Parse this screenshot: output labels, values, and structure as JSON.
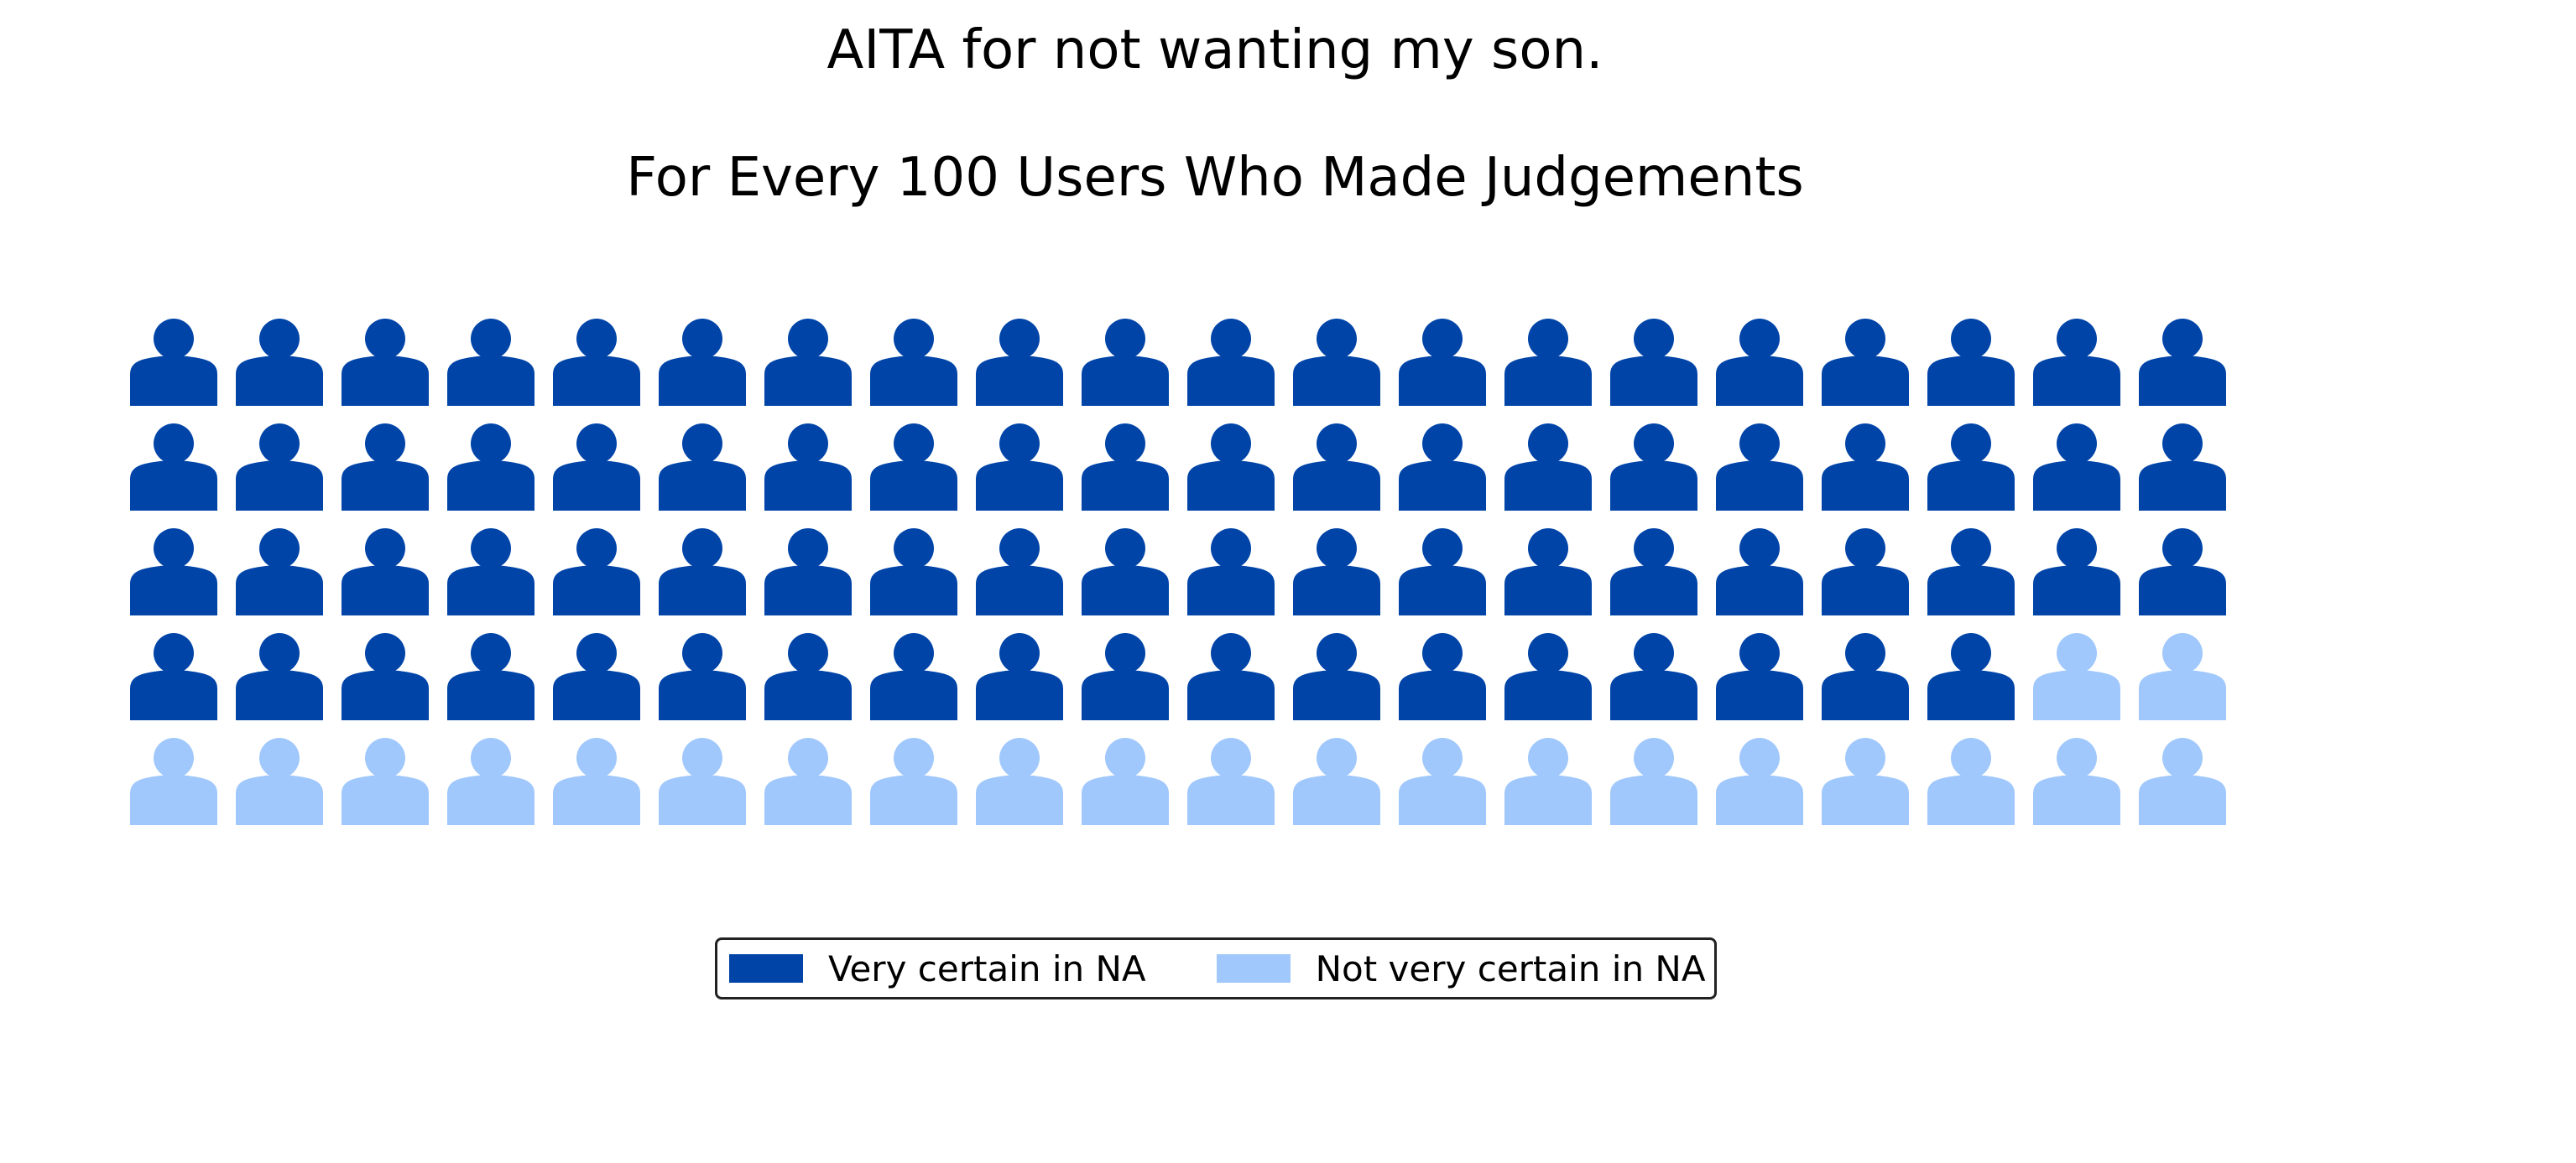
{
  "chart_data": {
    "type": "waffle",
    "title": "AITA for not wanting my son.",
    "subtitle": "For Every 100 Users Who Made Judgements",
    "rows": 5,
    "columns": 20,
    "icon": "person-icon",
    "series": [
      {
        "name": "Very certain in NA",
        "value": 78,
        "color": "#0044A8"
      },
      {
        "name": "Not very certain in NA",
        "value": 22,
        "color": "#A0C8FC"
      }
    ],
    "legend_position": "bottom-center"
  }
}
